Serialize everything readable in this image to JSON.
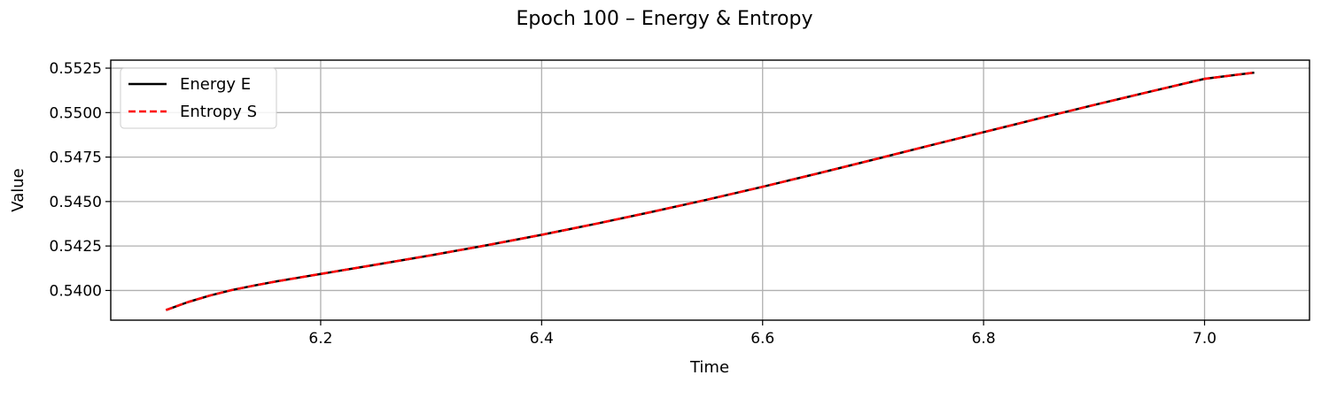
{
  "chart_data": {
    "type": "line",
    "title": "Epoch 100 – Energy & Entropy",
    "xlabel": "Time",
    "ylabel": "Value",
    "xlim": [
      6.01,
      7.095
    ],
    "ylim": [
      0.53833,
      0.55295
    ],
    "x_ticks": [
      "6.2",
      "6.4",
      "6.6",
      "6.8",
      "7.0"
    ],
    "y_ticks": [
      "0.5400",
      "0.5425",
      "0.5450",
      "0.5475",
      "0.5500",
      "0.5525"
    ],
    "grid": true,
    "legend": {
      "location": "upper-left"
    },
    "x": [
      6.06,
      6.08,
      6.1,
      6.12,
      6.14,
      6.16,
      6.18,
      6.2,
      6.25,
      6.3,
      6.35,
      6.4,
      6.45,
      6.5,
      6.55,
      6.6,
      6.65,
      6.7,
      6.75,
      6.8,
      6.85,
      6.9,
      6.95,
      7.0,
      7.045
    ],
    "series": [
      {
        "name": "Energy E",
        "color": "#000000",
        "style": "solid",
        "values": [
          0.5389,
          0.53935,
          0.53972,
          0.54003,
          0.54028,
          0.54051,
          0.54072,
          0.54093,
          0.54145,
          0.54198,
          0.54254,
          0.54313,
          0.54376,
          0.54442,
          0.54511,
          0.54583,
          0.54658,
          0.54735,
          0.54813,
          0.5489,
          0.54967,
          0.55043,
          0.55117,
          0.5519,
          0.55225
        ]
      },
      {
        "name": "Entropy S",
        "color": "#ff0000",
        "style": "dashed",
        "values": [
          0.5389,
          0.53935,
          0.53972,
          0.54003,
          0.54028,
          0.54051,
          0.54072,
          0.54093,
          0.54145,
          0.54198,
          0.54254,
          0.54313,
          0.54376,
          0.54442,
          0.54511,
          0.54583,
          0.54658,
          0.54735,
          0.54813,
          0.5489,
          0.54967,
          0.55043,
          0.55117,
          0.5519,
          0.55225
        ]
      }
    ]
  }
}
